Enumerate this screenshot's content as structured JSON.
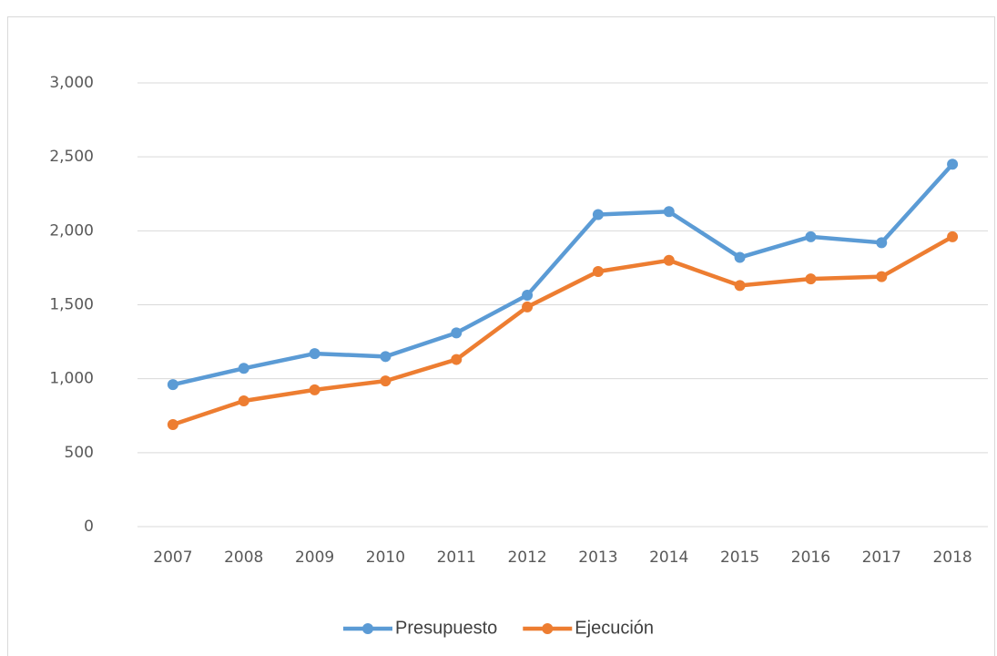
{
  "chart_data": {
    "type": "line",
    "categories": [
      "2007",
      "2008",
      "2009",
      "2010",
      "2011",
      "2012",
      "2013",
      "2014",
      "2015",
      "2016",
      "2017",
      "2018"
    ],
    "series": [
      {
        "name": "Presupuesto",
        "color": "#5b9bd5",
        "values": [
          960,
          1070,
          1170,
          1150,
          1310,
          1565,
          2110,
          2130,
          1820,
          1960,
          1920,
          2450
        ]
      },
      {
        "name": "Ejecución",
        "color": "#ed7d31",
        "values": [
          690,
          850,
          925,
          985,
          1130,
          1485,
          1725,
          1800,
          1630,
          1675,
          1690,
          1960
        ]
      }
    ],
    "ylim": [
      0,
      3000
    ],
    "yticks": [
      0,
      500,
      {
        "value": 1000,
        "label": "1,000"
      },
      {
        "value": 1500,
        "label": "1,500"
      },
      {
        "value": 2000,
        "label": "2,000"
      },
      {
        "value": 2500,
        "label": "2,500"
      },
      {
        "value": 3000,
        "label": "3,000"
      }
    ],
    "grid": true,
    "legend": "bottom"
  }
}
